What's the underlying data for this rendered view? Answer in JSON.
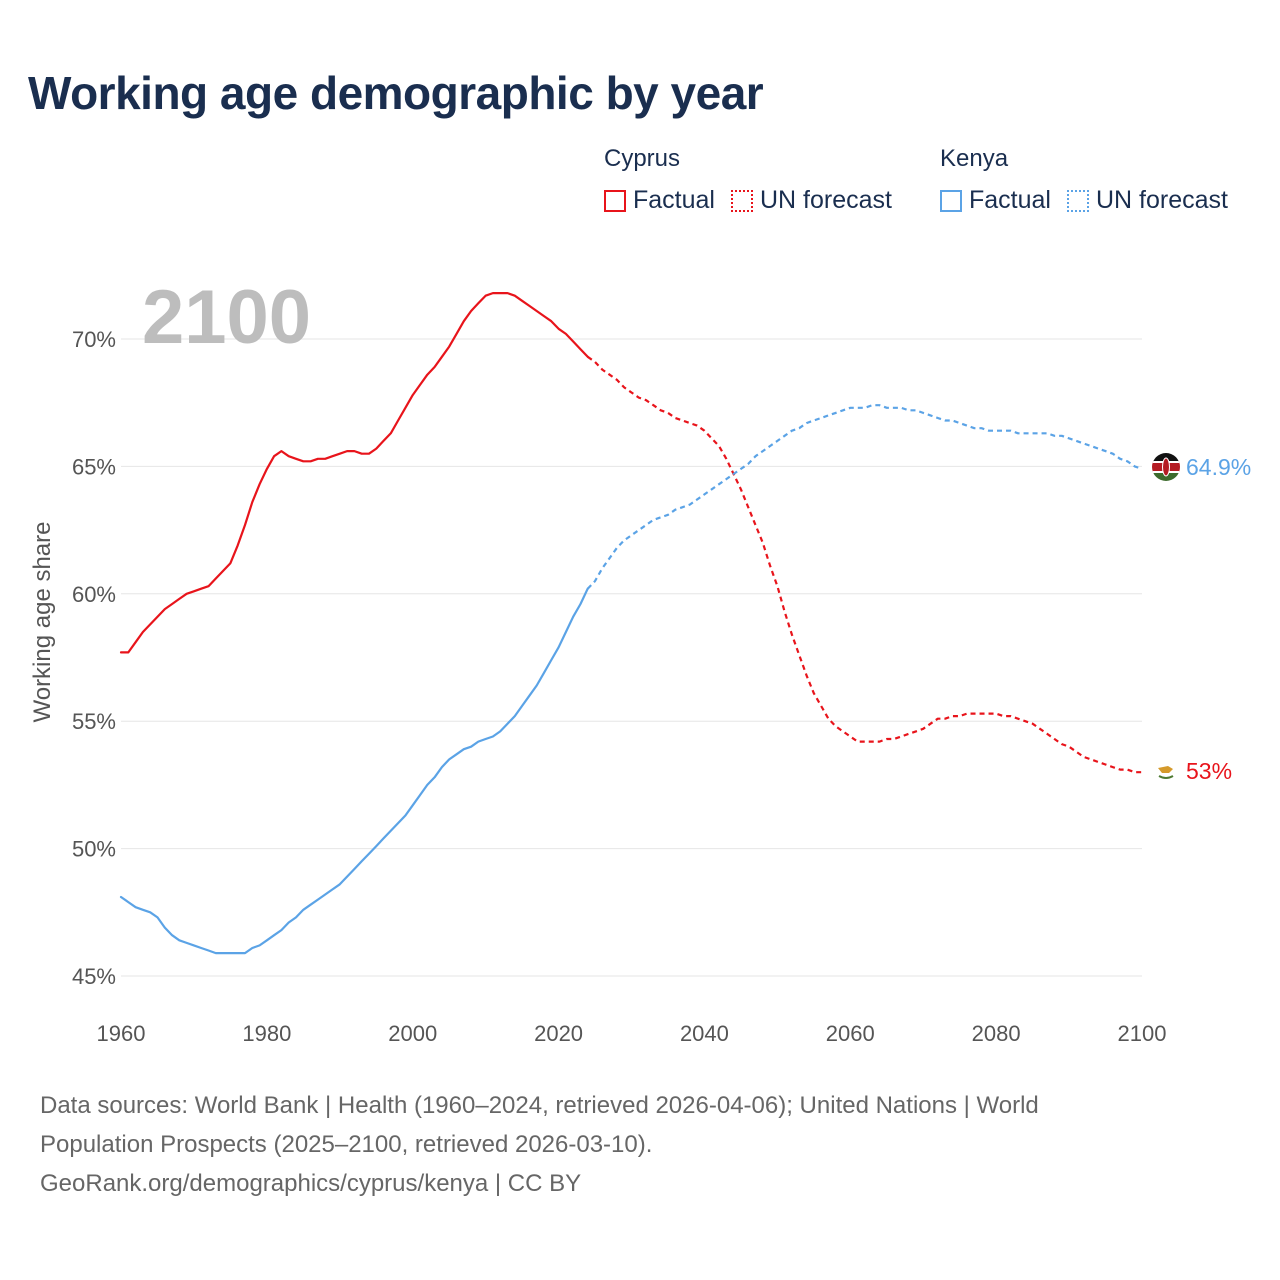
{
  "colors": {
    "cyprus": "#e8141b",
    "kenya": "#5ba3e6",
    "grid": "#e6e6e6",
    "title": "#1a2e4f",
    "year_watermark": "#bdbdbd"
  },
  "page": {
    "title": "Working age demographic by year",
    "footer": {
      "line1": "Data sources: World Bank | Health (1960–2024, retrieved 2026-04-06); United Nations | World",
      "line2": "Population Prospects (2025–2100, retrieved 2026-03-10).",
      "line3": "GeoRank.org/demographics/cyprus/kenya | CC BY"
    }
  },
  "legend": {
    "cyprus": {
      "title": "Cyprus",
      "factual": "Factual",
      "forecast": "UN forecast"
    },
    "kenya": {
      "title": "Kenya",
      "factual": "Factual",
      "forecast": "UN forecast"
    }
  },
  "chart_data": {
    "type": "line",
    "title": "Working age demographic by year",
    "year_label": "2100",
    "ylabel": "Working age share",
    "xlabel": "",
    "xlim": [
      1960,
      2100
    ],
    "ylim": [
      45,
      72
    ],
    "x_ticks": [
      1960,
      1980,
      2000,
      2020,
      2040,
      2060,
      2080,
      2100
    ],
    "x_tick_labels": [
      "1960",
      "1980",
      "2000",
      "2020",
      "2040",
      "2060",
      "2080",
      "2100"
    ],
    "y_ticks": [
      45,
      50,
      55,
      60,
      65,
      70
    ],
    "y_tick_labels": [
      "45%",
      "50%",
      "55%",
      "60%",
      "65%",
      "70%"
    ],
    "factual_range": [
      1960,
      2024
    ],
    "forecast_range": [
      2024,
      2100
    ],
    "series": [
      {
        "name": "Cyprus",
        "end_label": "53%",
        "points": [
          [
            1960,
            57.7
          ],
          [
            1961,
            57.7
          ],
          [
            1962,
            58.1
          ],
          [
            1963,
            58.5
          ],
          [
            1964,
            58.8
          ],
          [
            1965,
            59.1
          ],
          [
            1966,
            59.4
          ],
          [
            1967,
            59.6
          ],
          [
            1968,
            59.8
          ],
          [
            1969,
            60.0
          ],
          [
            1970,
            60.1
          ],
          [
            1971,
            60.2
          ],
          [
            1972,
            60.3
          ],
          [
            1973,
            60.6
          ],
          [
            1974,
            60.9
          ],
          [
            1975,
            61.2
          ],
          [
            1976,
            61.9
          ],
          [
            1977,
            62.7
          ],
          [
            1978,
            63.6
          ],
          [
            1979,
            64.3
          ],
          [
            1980,
            64.9
          ],
          [
            1981,
            65.4
          ],
          [
            1982,
            65.6
          ],
          [
            1983,
            65.4
          ],
          [
            1984,
            65.3
          ],
          [
            1985,
            65.2
          ],
          [
            1986,
            65.2
          ],
          [
            1987,
            65.3
          ],
          [
            1988,
            65.3
          ],
          [
            1989,
            65.4
          ],
          [
            1990,
            65.5
          ],
          [
            1991,
            65.6
          ],
          [
            1992,
            65.6
          ],
          [
            1993,
            65.5
          ],
          [
            1994,
            65.5
          ],
          [
            1995,
            65.7
          ],
          [
            1996,
            66.0
          ],
          [
            1997,
            66.3
          ],
          [
            1998,
            66.8
          ],
          [
            1999,
            67.3
          ],
          [
            2000,
            67.8
          ],
          [
            2001,
            68.2
          ],
          [
            2002,
            68.6
          ],
          [
            2003,
            68.9
          ],
          [
            2004,
            69.3
          ],
          [
            2005,
            69.7
          ],
          [
            2006,
            70.2
          ],
          [
            2007,
            70.7
          ],
          [
            2008,
            71.1
          ],
          [
            2009,
            71.4
          ],
          [
            2010,
            71.7
          ],
          [
            2011,
            71.8
          ],
          [
            2012,
            71.8
          ],
          [
            2013,
            71.8
          ],
          [
            2014,
            71.7
          ],
          [
            2015,
            71.5
          ],
          [
            2016,
            71.3
          ],
          [
            2017,
            71.1
          ],
          [
            2018,
            70.9
          ],
          [
            2019,
            70.7
          ],
          [
            2020,
            70.4
          ],
          [
            2021,
            70.2
          ],
          [
            2022,
            69.9
          ],
          [
            2023,
            69.6
          ],
          [
            2024,
            69.3
          ],
          [
            2025,
            69.1
          ],
          [
            2026,
            68.8
          ],
          [
            2027,
            68.6
          ],
          [
            2028,
            68.4
          ],
          [
            2029,
            68.1
          ],
          [
            2030,
            67.9
          ],
          [
            2031,
            67.7
          ],
          [
            2032,
            67.6
          ],
          [
            2033,
            67.4
          ],
          [
            2034,
            67.2
          ],
          [
            2035,
            67.1
          ],
          [
            2036,
            66.9
          ],
          [
            2037,
            66.8
          ],
          [
            2038,
            66.7
          ],
          [
            2039,
            66.6
          ],
          [
            2040,
            66.4
          ],
          [
            2041,
            66.1
          ],
          [
            2042,
            65.8
          ],
          [
            2043,
            65.3
          ],
          [
            2044,
            64.7
          ],
          [
            2045,
            64.1
          ],
          [
            2046,
            63.4
          ],
          [
            2047,
            62.7
          ],
          [
            2048,
            62.0
          ],
          [
            2049,
            61.1
          ],
          [
            2050,
            60.3
          ],
          [
            2051,
            59.3
          ],
          [
            2052,
            58.4
          ],
          [
            2053,
            57.6
          ],
          [
            2054,
            56.8
          ],
          [
            2055,
            56.1
          ],
          [
            2056,
            55.6
          ],
          [
            2057,
            55.1
          ],
          [
            2058,
            54.8
          ],
          [
            2059,
            54.6
          ],
          [
            2060,
            54.4
          ],
          [
            2061,
            54.2
          ],
          [
            2062,
            54.2
          ],
          [
            2063,
            54.2
          ],
          [
            2064,
            54.2
          ],
          [
            2065,
            54.3
          ],
          [
            2066,
            54.3
          ],
          [
            2067,
            54.4
          ],
          [
            2068,
            54.5
          ],
          [
            2069,
            54.6
          ],
          [
            2070,
            54.7
          ],
          [
            2071,
            54.9
          ],
          [
            2072,
            55.1
          ],
          [
            2073,
            55.1
          ],
          [
            2074,
            55.2
          ],
          [
            2075,
            55.2
          ],
          [
            2076,
            55.3
          ],
          [
            2077,
            55.3
          ],
          [
            2078,
            55.3
          ],
          [
            2079,
            55.3
          ],
          [
            2080,
            55.3
          ],
          [
            2081,
            55.2
          ],
          [
            2082,
            55.2
          ],
          [
            2083,
            55.1
          ],
          [
            2084,
            55.0
          ],
          [
            2085,
            54.9
          ],
          [
            2086,
            54.7
          ],
          [
            2087,
            54.5
          ],
          [
            2088,
            54.3
          ],
          [
            2089,
            54.1
          ],
          [
            2090,
            54.0
          ],
          [
            2091,
            53.8
          ],
          [
            2092,
            53.6
          ],
          [
            2093,
            53.5
          ],
          [
            2094,
            53.4
          ],
          [
            2095,
            53.3
          ],
          [
            2096,
            53.2
          ],
          [
            2097,
            53.1
          ],
          [
            2098,
            53.1
          ],
          [
            2099,
            53.0
          ],
          [
            2100,
            53.0
          ]
        ]
      },
      {
        "name": "Kenya",
        "end_label": "64.9%",
        "points": [
          [
            1960,
            48.1
          ],
          [
            1961,
            47.9
          ],
          [
            1962,
            47.7
          ],
          [
            1963,
            47.6
          ],
          [
            1964,
            47.5
          ],
          [
            1965,
            47.3
          ],
          [
            1966,
            46.9
          ],
          [
            1967,
            46.6
          ],
          [
            1968,
            46.4
          ],
          [
            1969,
            46.3
          ],
          [
            1970,
            46.2
          ],
          [
            1971,
            46.1
          ],
          [
            1972,
            46.0
          ],
          [
            1973,
            45.9
          ],
          [
            1974,
            45.9
          ],
          [
            1975,
            45.9
          ],
          [
            1976,
            45.9
          ],
          [
            1977,
            45.9
          ],
          [
            1978,
            46.1
          ],
          [
            1979,
            46.2
          ],
          [
            1980,
            46.4
          ],
          [
            1981,
            46.6
          ],
          [
            1982,
            46.8
          ],
          [
            1983,
            47.1
          ],
          [
            1984,
            47.3
          ],
          [
            1985,
            47.6
          ],
          [
            1986,
            47.8
          ],
          [
            1987,
            48.0
          ],
          [
            1988,
            48.2
          ],
          [
            1989,
            48.4
          ],
          [
            1990,
            48.6
          ],
          [
            1991,
            48.9
          ],
          [
            1992,
            49.2
          ],
          [
            1993,
            49.5
          ],
          [
            1994,
            49.8
          ],
          [
            1995,
            50.1
          ],
          [
            1996,
            50.4
          ],
          [
            1997,
            50.7
          ],
          [
            1998,
            51.0
          ],
          [
            1999,
            51.3
          ],
          [
            2000,
            51.7
          ],
          [
            2001,
            52.1
          ],
          [
            2002,
            52.5
          ],
          [
            2003,
            52.8
          ],
          [
            2004,
            53.2
          ],
          [
            2005,
            53.5
          ],
          [
            2006,
            53.7
          ],
          [
            2007,
            53.9
          ],
          [
            2008,
            54.0
          ],
          [
            2009,
            54.2
          ],
          [
            2010,
            54.3
          ],
          [
            2011,
            54.4
          ],
          [
            2012,
            54.6
          ],
          [
            2013,
            54.9
          ],
          [
            2014,
            55.2
          ],
          [
            2015,
            55.6
          ],
          [
            2016,
            56.0
          ],
          [
            2017,
            56.4
          ],
          [
            2018,
            56.9
          ],
          [
            2019,
            57.4
          ],
          [
            2020,
            57.9
          ],
          [
            2021,
            58.5
          ],
          [
            2022,
            59.1
          ],
          [
            2023,
            59.6
          ],
          [
            2024,
            60.2
          ],
          [
            2025,
            60.5
          ],
          [
            2026,
            61.0
          ],
          [
            2027,
            61.4
          ],
          [
            2028,
            61.8
          ],
          [
            2029,
            62.1
          ],
          [
            2030,
            62.3
          ],
          [
            2031,
            62.5
          ],
          [
            2032,
            62.7
          ],
          [
            2033,
            62.9
          ],
          [
            2034,
            63.0
          ],
          [
            2035,
            63.1
          ],
          [
            2036,
            63.3
          ],
          [
            2037,
            63.4
          ],
          [
            2038,
            63.5
          ],
          [
            2039,
            63.7
          ],
          [
            2040,
            63.9
          ],
          [
            2041,
            64.1
          ],
          [
            2042,
            64.3
          ],
          [
            2043,
            64.5
          ],
          [
            2044,
            64.7
          ],
          [
            2045,
            64.9
          ],
          [
            2046,
            65.1
          ],
          [
            2047,
            65.4
          ],
          [
            2048,
            65.6
          ],
          [
            2049,
            65.8
          ],
          [
            2050,
            66.0
          ],
          [
            2051,
            66.2
          ],
          [
            2052,
            66.4
          ],
          [
            2053,
            66.5
          ],
          [
            2054,
            66.7
          ],
          [
            2055,
            66.8
          ],
          [
            2056,
            66.9
          ],
          [
            2057,
            67.0
          ],
          [
            2058,
            67.1
          ],
          [
            2059,
            67.2
          ],
          [
            2060,
            67.3
          ],
          [
            2061,
            67.3
          ],
          [
            2062,
            67.3
          ],
          [
            2063,
            67.4
          ],
          [
            2064,
            67.4
          ],
          [
            2065,
            67.3
          ],
          [
            2066,
            67.3
          ],
          [
            2067,
            67.3
          ],
          [
            2068,
            67.2
          ],
          [
            2069,
            67.2
          ],
          [
            2070,
            67.1
          ],
          [
            2071,
            67.0
          ],
          [
            2072,
            66.9
          ],
          [
            2073,
            66.8
          ],
          [
            2074,
            66.8
          ],
          [
            2075,
            66.7
          ],
          [
            2076,
            66.6
          ],
          [
            2077,
            66.5
          ],
          [
            2078,
            66.5
          ],
          [
            2079,
            66.4
          ],
          [
            2080,
            66.4
          ],
          [
            2081,
            66.4
          ],
          [
            2082,
            66.4
          ],
          [
            2083,
            66.3
          ],
          [
            2084,
            66.3
          ],
          [
            2085,
            66.3
          ],
          [
            2086,
            66.3
          ],
          [
            2087,
            66.3
          ],
          [
            2088,
            66.2
          ],
          [
            2089,
            66.2
          ],
          [
            2090,
            66.1
          ],
          [
            2091,
            66.0
          ],
          [
            2092,
            65.9
          ],
          [
            2093,
            65.8
          ],
          [
            2094,
            65.7
          ],
          [
            2095,
            65.6
          ],
          [
            2096,
            65.5
          ],
          [
            2097,
            65.3
          ],
          [
            2098,
            65.2
          ],
          [
            2099,
            65.0
          ],
          [
            2100,
            64.9
          ]
        ]
      }
    ]
  }
}
